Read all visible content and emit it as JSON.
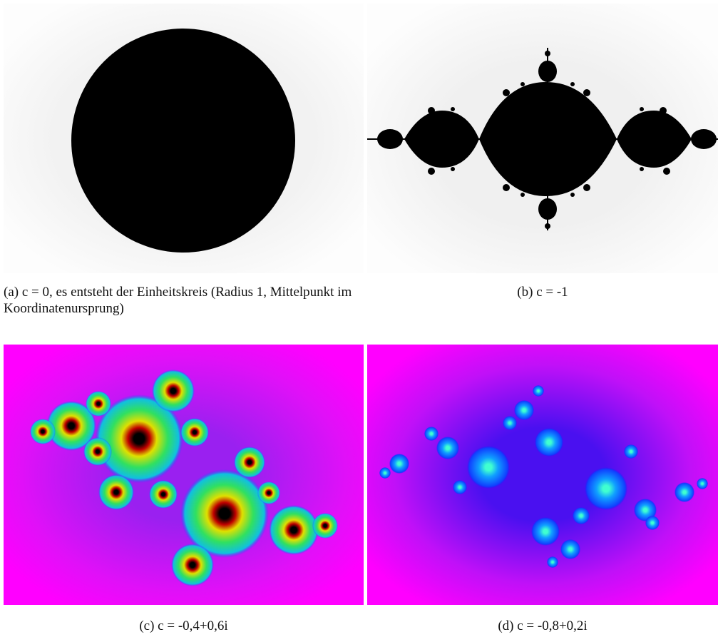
{
  "figure": {
    "panels": [
      {
        "caption": "(a) c = 0, es entsteht der Einheitskreis (Radius 1, Mittelpunkt im Koordinatenursprung)"
      },
      {
        "caption": "(b) c = -1"
      },
      {
        "caption": "(c) c = -0,4+0,6i"
      },
      {
        "caption": "(d) c = -0,8+0,2i"
      }
    ]
  }
}
